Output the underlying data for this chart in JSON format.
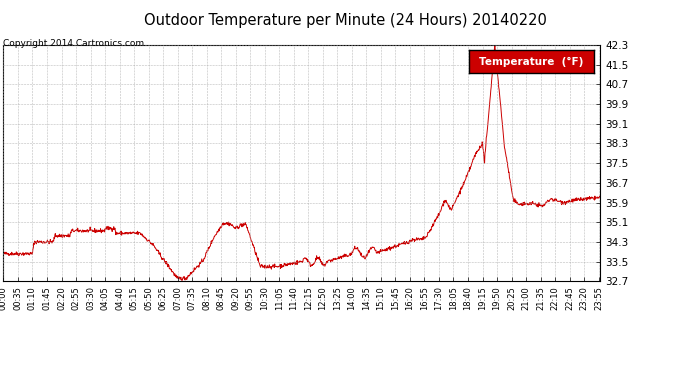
{
  "title": "Outdoor Temperature per Minute (24 Hours) 20140220",
  "copyright": "Copyright 2014 Cartronics.com",
  "legend_label": "Temperature  (°F)",
  "line_color": "#cc0000",
  "legend_bg": "#cc0000",
  "legend_fg": "#ffffff",
  "bg_color": "#ffffff",
  "grid_color": "#aaaaaa",
  "ylim": [
    32.7,
    42.3
  ],
  "yticks": [
    32.7,
    33.5,
    34.3,
    35.1,
    35.9,
    36.7,
    37.5,
    38.3,
    39.1,
    39.9,
    40.7,
    41.5,
    42.3
  ],
  "figsize": [
    6.9,
    3.75
  ],
  "dpi": 100
}
